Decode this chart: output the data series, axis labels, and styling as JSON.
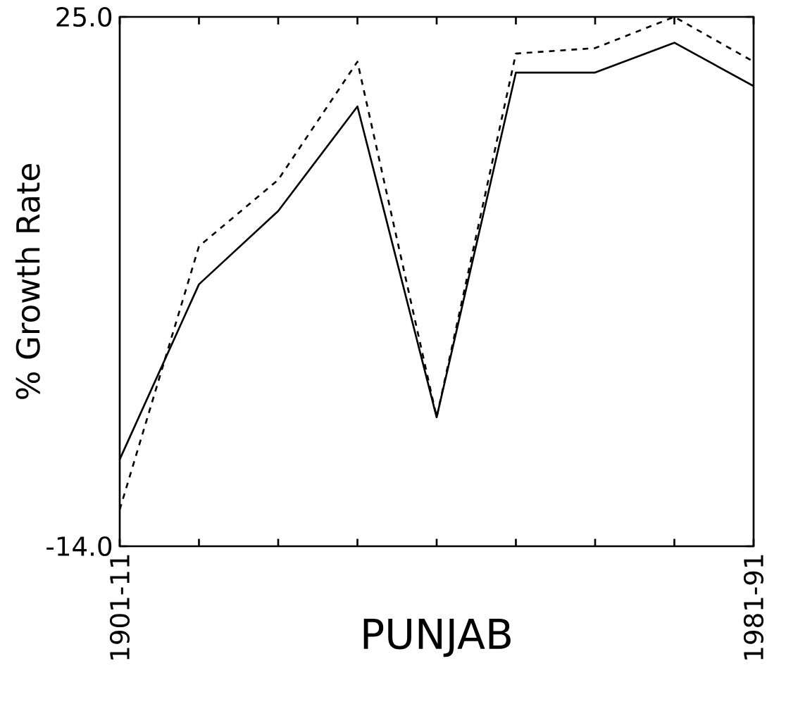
{
  "chart_data": {
    "type": "line",
    "xlabel": "PUNJAB",
    "ylabel": "% Growth Rate",
    "categories": [
      "1901-11",
      null,
      null,
      null,
      null,
      null,
      null,
      null,
      "1981-91"
    ],
    "ylim": [
      -14,
      25
    ],
    "yticks": [
      {
        "value": -14,
        "label": "-14.0"
      },
      {
        "value": 25,
        "label": "25.0"
      }
    ],
    "series": [
      {
        "color": "#000000",
        "line_style": "solid",
        "values": [
          -7.6,
          5.3,
          10.7,
          18.4,
          -4.5,
          20.9,
          20.9,
          23.1,
          19.9
        ]
      },
      {
        "color": "#000000",
        "line_style": "dashed",
        "values": [
          -11.3,
          8.1,
          13.0,
          21.7,
          -4.5,
          22.3,
          22.7,
          25.0,
          21.7
        ]
      }
    ]
  }
}
